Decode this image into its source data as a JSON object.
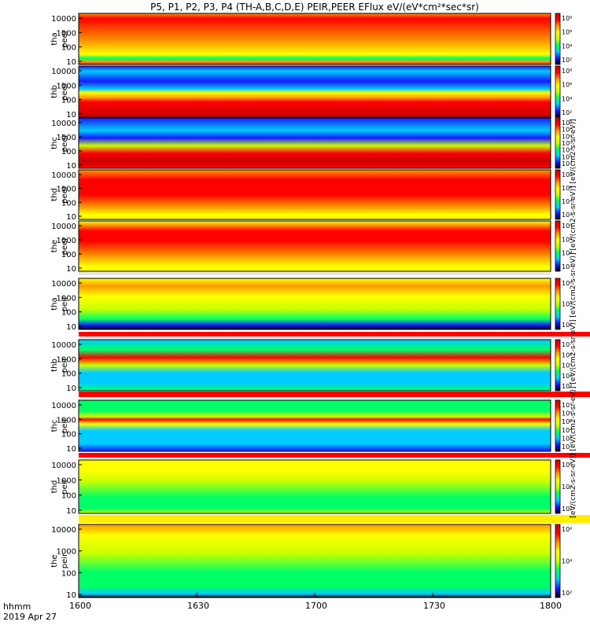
{
  "title": "P5, P1, P2, P3, P4 (TH-A,B,C,D,E) PEIR,PEER EFlux eV/(eV*cm²*sec*sr)",
  "x_axis": {
    "corner_label": "hhmm",
    "date_label": "2019 Apr 27",
    "ticks": [
      "1600",
      "1630",
      "1700",
      "1730",
      "1800"
    ]
  },
  "colorbar_units_label": "[eV/(cm2-s-sr-eV)] [eV/(cm2-s-sr-eV)] [eV/(cm2-s-sr-eV)] [eV/(cm2-s-sr-eV)] [eV/(cm2-s-sr-eV)] [eV/(cm2-s-sr-eV)]",
  "colors": {
    "colormap": [
      "#000000",
      "#1a1aff",
      "#00ccff",
      "#00ff66",
      "#c8ff00",
      "#ffff00",
      "#ff9900",
      "#ff0000",
      "#c80000"
    ]
  },
  "chart_data": [
    {
      "type": "heatmap",
      "probe": "tha",
      "species": "peer",
      "y_ticks": [
        "10",
        "100",
        "1000",
        "10000"
      ],
      "colorbar_ticks": [
        "10²",
        "10⁴",
        "10⁶",
        "10⁸"
      ]
    },
    {
      "type": "heatmap",
      "probe": "thb",
      "species": "peer",
      "y_ticks": [
        "10",
        "100",
        "1000",
        "10000"
      ],
      "colorbar_ticks": [
        "10²",
        "10⁴",
        "10⁶",
        "10⁸"
      ]
    },
    {
      "type": "heatmap",
      "probe": "thc",
      "species": "peer",
      "y_ticks": [
        "10",
        "100",
        "1000",
        "10000"
      ],
      "colorbar_ticks": [
        "10²",
        "10³",
        "10⁴",
        "10⁵",
        "10⁶",
        "10⁷",
        "10⁸"
      ]
    },
    {
      "type": "heatmap",
      "probe": "thd",
      "species": "peer",
      "y_ticks": [
        "10",
        "100",
        "1000",
        "10000"
      ],
      "colorbar_ticks": [
        "10²",
        "10⁴",
        "10⁶",
        "10⁸"
      ]
    },
    {
      "type": "heatmap",
      "probe": "the",
      "species": "peer",
      "y_ticks": [
        "10",
        "100",
        "1000",
        "10000"
      ],
      "colorbar_ticks": [
        "10²",
        "10⁴",
        "10⁶",
        "10⁸"
      ]
    },
    {
      "type": "heatmap",
      "probe": "tha",
      "species": "peir",
      "y_ticks": [
        "10",
        "100",
        "1000",
        "10000"
      ],
      "colorbar_ticks": [
        "10²",
        "10⁴",
        "10⁶"
      ]
    },
    {
      "type": "heatmap",
      "probe": "thb",
      "species": "peir",
      "y_ticks": [
        "10",
        "100",
        "1000",
        "10000"
      ],
      "colorbar_ticks": [
        "10³",
        "10⁴",
        "10⁵",
        "10⁶",
        "10⁷"
      ]
    },
    {
      "type": "heatmap",
      "probe": "thc",
      "species": "peir",
      "y_ticks": [
        "10",
        "100",
        "1000",
        "10000"
      ],
      "colorbar_ticks": [
        "10²",
        "10³",
        "10⁴",
        "10⁵",
        "10⁶",
        "10⁷"
      ]
    },
    {
      "type": "heatmap",
      "probe": "thd",
      "species": "peir",
      "y_ticks": [
        "10",
        "100",
        "1000",
        "10000"
      ],
      "colorbar_ticks": [
        "10²",
        "10⁴",
        "10⁶"
      ]
    },
    {
      "type": "heatmap",
      "probe": "the",
      "species": "peir",
      "y_ticks": [
        "10",
        "100",
        "1000",
        "10000"
      ],
      "colorbar_ticks": [
        "10²",
        "10⁴",
        "10⁶"
      ]
    }
  ]
}
